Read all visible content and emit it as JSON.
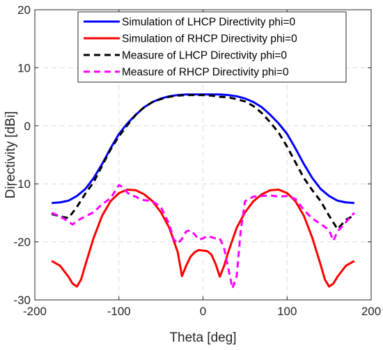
{
  "chart_data": {
    "type": "line",
    "xlabel": "Theta [deg]",
    "ylabel": "Directivity [dBi]",
    "xlim": [
      -200,
      200
    ],
    "ylim": [
      -30,
      20
    ],
    "xticks": [
      -200,
      -100,
      0,
      100,
      200
    ],
    "yticks": [
      -30,
      -20,
      -10,
      0,
      10,
      20
    ],
    "grid": true,
    "legend_position": "top",
    "series": [
      {
        "name": "Simulation of LHCP Directivity phi=0",
        "color": "#0000ff",
        "style": "solid",
        "x": [
          -180,
          -170,
          -160,
          -150,
          -140,
          -130,
          -120,
          -110,
          -100,
          -90,
          -80,
          -70,
          -60,
          -50,
          -40,
          -30,
          -20,
          -10,
          0,
          10,
          20,
          30,
          40,
          50,
          60,
          70,
          80,
          90,
          100,
          110,
          120,
          130,
          140,
          150,
          160,
          170,
          180
        ],
        "y": [
          -13.3,
          -13.2,
          -12.9,
          -12.1,
          -10.9,
          -9.0,
          -6.6,
          -3.9,
          -1.4,
          0.4,
          1.9,
          3.2,
          4.1,
          4.7,
          5.1,
          5.3,
          5.4,
          5.4,
          5.4,
          5.4,
          5.4,
          5.3,
          5.1,
          4.7,
          4.1,
          3.2,
          1.9,
          0.4,
          -1.4,
          -3.9,
          -6.6,
          -9.0,
          -10.9,
          -12.1,
          -12.9,
          -13.2,
          -13.3
        ]
      },
      {
        "name": "Simulation of RHCP Directivity phi=0",
        "color": "#ff0000",
        "style": "solid",
        "x": [
          -180,
          -170,
          -160,
          -155,
          -150,
          -145,
          -140,
          -130,
          -120,
          -110,
          -100,
          -90,
          -80,
          -70,
          -60,
          -50,
          -40,
          -30,
          -25,
          -20,
          -15,
          -10,
          -5,
          0,
          5,
          10,
          15,
          20,
          25,
          30,
          40,
          50,
          60,
          70,
          80,
          90,
          100,
          110,
          120,
          130,
          140,
          145,
          150,
          155,
          160,
          170,
          180
        ],
        "y": [
          -23.3,
          -24.1,
          -26.0,
          -27.2,
          -27.7,
          -26.5,
          -24.0,
          -19.3,
          -15.5,
          -13.0,
          -11.6,
          -11.0,
          -11.1,
          -11.8,
          -13.0,
          -14.9,
          -17.6,
          -21.8,
          -25.9,
          -24.1,
          -22.6,
          -21.8,
          -21.4,
          -21.5,
          -21.6,
          -22.2,
          -23.8,
          -26.0,
          -24.2,
          -21.8,
          -17.6,
          -14.9,
          -13.0,
          -11.8,
          -11.1,
          -11.0,
          -11.6,
          -13.0,
          -15.5,
          -19.3,
          -24.0,
          -26.5,
          -27.7,
          -27.2,
          -26.0,
          -24.1,
          -23.3
        ]
      },
      {
        "name": "Measure of LHCP Directivity phi=0",
        "color": "#000000",
        "style": "dashed",
        "x": [
          -180,
          -170,
          -160,
          -150,
          -140,
          -130,
          -120,
          -110,
          -100,
          -90,
          -80,
          -70,
          -60,
          -50,
          -40,
          -30,
          -20,
          -10,
          0,
          10,
          20,
          30,
          40,
          50,
          60,
          70,
          80,
          90,
          100,
          110,
          120,
          130,
          140,
          150,
          160,
          170,
          180
        ],
        "y": [
          -15.2,
          -15.6,
          -15.9,
          -14.0,
          -11.7,
          -9.7,
          -6.9,
          -4.1,
          -1.8,
          0.1,
          1.9,
          3.2,
          4.1,
          4.6,
          5.0,
          5.2,
          5.3,
          5.3,
          5.3,
          5.2,
          5.0,
          4.9,
          4.6,
          4.2,
          3.4,
          2.2,
          0.6,
          -1.2,
          -3.6,
          -6.3,
          -9.0,
          -11.1,
          -13.0,
          -15.5,
          -17.8,
          -16.2,
          -15.4
        ]
      },
      {
        "name": "Measure of RHCP Directivity phi=0",
        "color": "#ff00ff",
        "style": "dashed",
        "x": [
          -180,
          -170,
          -160,
          -155,
          -150,
          -140,
          -130,
          -120,
          -110,
          -100,
          -95,
          -90,
          -85,
          -80,
          -75,
          -70,
          -60,
          -50,
          -40,
          -35,
          -30,
          -25,
          -20,
          -15,
          -10,
          -5,
          0,
          5,
          10,
          15,
          20,
          25,
          30,
          35,
          40,
          45,
          50,
          60,
          70,
          80,
          90,
          100,
          110,
          120,
          130,
          140,
          150,
          155,
          160,
          170,
          180
        ],
        "y": [
          -15.0,
          -15.6,
          -16.5,
          -17.0,
          -16.4,
          -15.6,
          -14.9,
          -13.5,
          -12.5,
          -10.2,
          -10.6,
          -11.5,
          -12.0,
          -12.2,
          -12.6,
          -12.8,
          -13.0,
          -14.0,
          -17.0,
          -19.5,
          -20.3,
          -19.5,
          -18.2,
          -18.0,
          -18.7,
          -19.6,
          -19.4,
          -19.0,
          -19.2,
          -19.4,
          -19.4,
          -21.0,
          -24.5,
          -28.0,
          -26.0,
          -18.0,
          -13.0,
          -12.2,
          -12.1,
          -12.0,
          -12.2,
          -12.1,
          -12.6,
          -14.5,
          -16.0,
          -16.9,
          -18.0,
          -19.8,
          -18.2,
          -16.6,
          -15.0
        ]
      }
    ]
  }
}
